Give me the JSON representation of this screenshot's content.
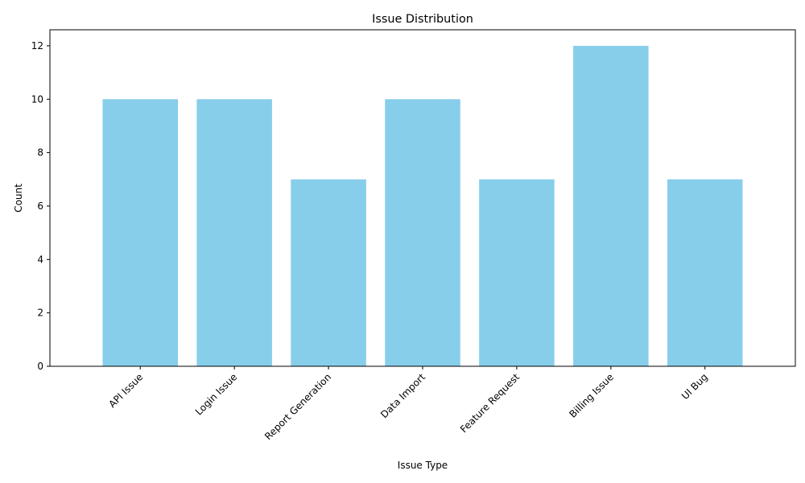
{
  "chart_data": {
    "type": "bar",
    "title": "Issue Distribution",
    "xlabel": "Issue Type",
    "ylabel": "Count",
    "categories": [
      "API Issue",
      "Login Issue",
      "Report Generation",
      "Data Import",
      "Feature Request",
      "Billing Issue",
      "UI Bug"
    ],
    "values": [
      10,
      10,
      7,
      10,
      7,
      12,
      7
    ],
    "ylim": [
      0,
      12.6
    ],
    "yticks": [
      0,
      2,
      4,
      6,
      8,
      10,
      12
    ],
    "bar_color": "#87ceeb",
    "grid": false,
    "legend": false
  }
}
